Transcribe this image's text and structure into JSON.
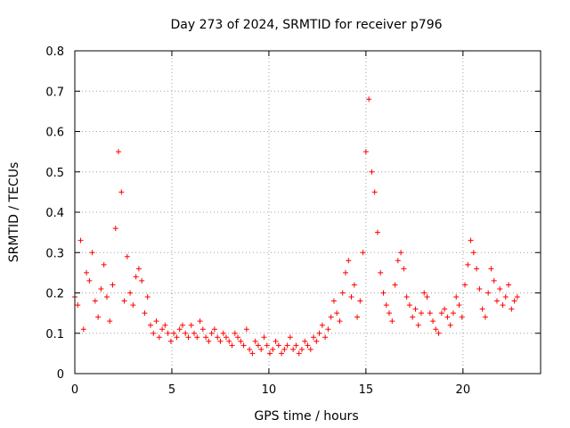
{
  "chart_data": {
    "type": "scatter",
    "title": "Day 273 of 2024, SRMTID for receiver p796",
    "xlabel": "GPS time / hours",
    "ylabel": "SRMTID / TECUs",
    "xlim": [
      0,
      24
    ],
    "ylim": [
      0,
      0.8
    ],
    "xticks": [
      0,
      5,
      10,
      15,
      20
    ],
    "yticks": [
      0,
      0.1,
      0.2,
      0.3,
      0.4,
      0.5,
      0.6,
      0.7,
      0.8
    ],
    "xtick_labels": [
      "0",
      "5",
      "10",
      "15",
      "20"
    ],
    "ytick_labels": [
      "0",
      "0.1",
      "0.2",
      "0.3",
      "0.4",
      "0.5",
      "0.6",
      "0.7",
      "0.8"
    ],
    "grid": true,
    "marker": "+",
    "color": "#ff0000",
    "series": [
      {
        "name": "SRMTID",
        "x": [
          0.0,
          0.15,
          0.3,
          0.45,
          0.6,
          0.75,
          0.9,
          1.05,
          1.2,
          1.35,
          1.5,
          1.65,
          1.8,
          1.95,
          2.1,
          2.25,
          2.4,
          2.55,
          2.7,
          2.85,
          3.0,
          3.15,
          3.3,
          3.45,
          3.6,
          3.75,
          3.9,
          4.05,
          4.2,
          4.35,
          4.5,
          4.65,
          4.8,
          4.95,
          5.1,
          5.25,
          5.4,
          5.55,
          5.7,
          5.85,
          6.0,
          6.15,
          6.3,
          6.45,
          6.6,
          6.75,
          6.9,
          7.05,
          7.2,
          7.35,
          7.5,
          7.65,
          7.8,
          7.95,
          8.1,
          8.25,
          8.4,
          8.55,
          8.7,
          8.85,
          9.0,
          9.15,
          9.3,
          9.45,
          9.6,
          9.75,
          9.9,
          10.05,
          10.2,
          10.35,
          10.5,
          10.65,
          10.8,
          10.95,
          11.1,
          11.25,
          11.4,
          11.55,
          11.7,
          11.85,
          12.0,
          12.15,
          12.3,
          12.45,
          12.6,
          12.75,
          12.9,
          13.05,
          13.2,
          13.35,
          13.5,
          13.65,
          13.8,
          13.95,
          14.1,
          14.25,
          14.4,
          14.55,
          14.7,
          14.85,
          15.0,
          15.15,
          15.3,
          15.45,
          15.6,
          15.75,
          15.9,
          16.05,
          16.2,
          16.35,
          16.5,
          16.65,
          16.8,
          16.95,
          17.1,
          17.25,
          17.4,
          17.55,
          17.7,
          17.85,
          18.0,
          18.15,
          18.3,
          18.45,
          18.6,
          18.75,
          18.9,
          19.05,
          19.2,
          19.35,
          19.5,
          19.65,
          19.8,
          19.95,
          20.1,
          20.25,
          20.4,
          20.55,
          20.7,
          20.85,
          21.0,
          21.15,
          21.3,
          21.45,
          21.6,
          21.75,
          21.9,
          22.05,
          22.2,
          22.35,
          22.5,
          22.65,
          22.8
        ],
        "y": [
          0.19,
          0.17,
          0.33,
          0.11,
          0.25,
          0.23,
          0.3,
          0.18,
          0.14,
          0.21,
          0.27,
          0.19,
          0.13,
          0.22,
          0.36,
          0.55,
          0.45,
          0.18,
          0.29,
          0.2,
          0.17,
          0.24,
          0.26,
          0.23,
          0.15,
          0.19,
          0.12,
          0.1,
          0.13,
          0.09,
          0.11,
          0.12,
          0.1,
          0.08,
          0.1,
          0.09,
          0.11,
          0.12,
          0.1,
          0.09,
          0.12,
          0.1,
          0.09,
          0.13,
          0.11,
          0.09,
          0.08,
          0.1,
          0.11,
          0.09,
          0.08,
          0.1,
          0.09,
          0.08,
          0.07,
          0.1,
          0.09,
          0.08,
          0.07,
          0.11,
          0.06,
          0.05,
          0.08,
          0.07,
          0.06,
          0.09,
          0.07,
          0.05,
          0.06,
          0.08,
          0.07,
          0.05,
          0.06,
          0.07,
          0.09,
          0.06,
          0.07,
          0.05,
          0.06,
          0.08,
          0.07,
          0.06,
          0.09,
          0.08,
          0.1,
          0.12,
          0.09,
          0.11,
          0.14,
          0.18,
          0.15,
          0.13,
          0.2,
          0.25,
          0.28,
          0.19,
          0.22,
          0.14,
          0.18,
          0.3,
          0.55,
          0.68,
          0.5,
          0.45,
          0.35,
          0.25,
          0.2,
          0.17,
          0.15,
          0.13,
          0.22,
          0.28,
          0.3,
          0.26,
          0.19,
          0.17,
          0.14,
          0.16,
          0.12,
          0.15,
          0.2,
          0.19,
          0.15,
          0.13,
          0.11,
          0.1,
          0.15,
          0.16,
          0.14,
          0.12,
          0.15,
          0.19,
          0.17,
          0.14,
          0.22,
          0.27,
          0.33,
          0.3,
          0.26,
          0.21,
          0.16,
          0.14,
          0.2,
          0.26,
          0.23,
          0.18,
          0.21,
          0.17,
          0.19,
          0.22,
          0.16,
          0.18,
          0.19
        ]
      }
    ]
  }
}
